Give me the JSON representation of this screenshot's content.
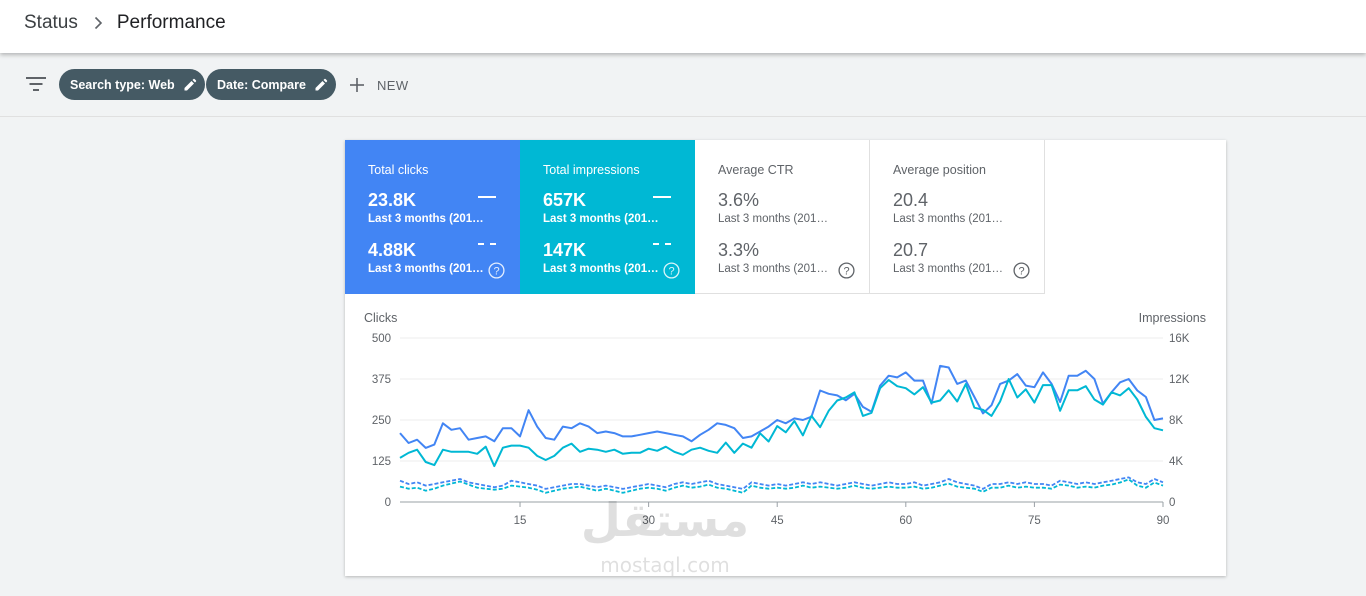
{
  "breadcrumb": {
    "root": "Status",
    "current": "Performance"
  },
  "filters": {
    "chips": [
      {
        "label": "Search type: Web"
      },
      {
        "label": "Date: Compare"
      }
    ],
    "new_label": "NEW"
  },
  "metrics": [
    {
      "label": "Total clicks",
      "value_current": "23.8K",
      "period_current": "Last 3 months (201…",
      "value_previous": "4.88K",
      "period_previous": "Last 3 months (201…",
      "color": "#4285f4",
      "selected": true
    },
    {
      "label": "Total impressions",
      "value_current": "657K",
      "period_current": "Last 3 months (201…",
      "value_previous": "147K",
      "period_previous": "Last 3 months (201…",
      "color": "#00b8d4",
      "selected": true
    },
    {
      "label": "Average CTR",
      "value_current": "3.6%",
      "period_current": "Last 3 months (201…",
      "value_previous": "3.3%",
      "period_previous": "Last 3 months (201…",
      "selected": false
    },
    {
      "label": "Average position",
      "value_current": "20.4",
      "period_current": "Last 3 months (201…",
      "value_previous": "20.7",
      "period_previous": "Last 3 months (201…",
      "selected": false
    }
  ],
  "chart_data": {
    "type": "line",
    "left_axis_title": "Clicks",
    "right_axis_title": "Impressions",
    "y_left_ticks": [
      "500",
      "375",
      "250",
      "125",
      "0"
    ],
    "y_right_ticks": [
      "16K",
      "12K",
      "8K",
      "4K",
      "0"
    ],
    "x_ticks": [
      "15",
      "30",
      "45",
      "60",
      "75",
      "90"
    ],
    "y_left_range": [
      0,
      500
    ],
    "y_right_range": [
      0,
      16000
    ],
    "x_range": [
      1,
      90
    ],
    "grid": true,
    "series": [
      {
        "axis": "left",
        "style": "solid",
        "color": "#4285f4",
        "values": [
          210,
          180,
          190,
          165,
          175,
          240,
          220,
          225,
          190,
          195,
          200,
          185,
          225,
          225,
          200,
          280,
          230,
          195,
          190,
          230,
          225,
          240,
          230,
          210,
          215,
          210,
          200,
          200,
          205,
          210,
          215,
          210,
          205,
          200,
          185,
          205,
          220,
          240,
          235,
          225,
          195,
          200,
          215,
          230,
          250,
          240,
          255,
          250,
          260,
          340,
          330,
          325,
          310,
          330,
          290,
          275,
          355,
          385,
          380,
          395,
          370,
          370,
          300,
          415,
          410,
          360,
          370,
          320,
          270,
          295,
          360,
          370,
          390,
          355,
          350,
          395,
          360,
          305,
          385,
          385,
          400,
          375,
          300,
          335,
          365,
          375,
          340,
          320,
          250,
          255
        ]
      },
      {
        "axis": "right",
        "style": "solid",
        "color": "#00b8d4",
        "values": [
          4300,
          4800,
          5100,
          3900,
          3600,
          5100,
          4900,
          4900,
          4900,
          4700,
          5400,
          3500,
          5300,
          5500,
          5500,
          5300,
          4500,
          4100,
          4500,
          5300,
          5700,
          4900,
          5200,
          5100,
          4900,
          5100,
          4700,
          4800,
          4800,
          5200,
          5000,
          5400,
          4900,
          4600,
          5100,
          5300,
          5000,
          4800,
          5800,
          4800,
          5700,
          5300,
          6700,
          5900,
          7400,
          6800,
          7900,
          6500,
          8400,
          7300,
          8900,
          9900,
          10200,
          10700,
          8400,
          8700,
          11100,
          11900,
          11300,
          11100,
          10500,
          11200,
          9700,
          9900,
          10900,
          9800,
          11500,
          9200,
          9000,
          8400,
          9800,
          12000,
          10200,
          11000,
          9700,
          11400,
          11400,
          8900,
          10900,
          10900,
          11300,
          10000,
          9500,
          10700,
          10400,
          11100,
          10000,
          8300,
          7200,
          7000
        ]
      },
      {
        "axis": "left",
        "style": "dashed",
        "color": "#4285f4",
        "values": [
          65,
          55,
          60,
          50,
          55,
          60,
          65,
          70,
          60,
          55,
          50,
          45,
          50,
          65,
          60,
          55,
          50,
          40,
          45,
          50,
          55,
          55,
          50,
          45,
          50,
          45,
          40,
          45,
          50,
          55,
          50,
          45,
          55,
          60,
          55,
          60,
          65,
          55,
          50,
          45,
          40,
          60,
          55,
          50,
          55,
          50,
          55,
          60,
          55,
          60,
          55,
          50,
          55,
          60,
          55,
          50,
          55,
          60,
          55,
          55,
          60,
          50,
          55,
          60,
          70,
          60,
          55,
          50,
          40,
          55,
          55,
          60,
          55,
          60,
          55,
          55,
          50,
          65,
          60,
          55,
          60,
          55,
          60,
          65,
          70,
          75,
          60,
          55,
          70,
          60
        ]
      },
      {
        "axis": "right",
        "style": "dashed",
        "color": "#00b8d4",
        "values": [
          1500,
          1300,
          1400,
          1100,
          1300,
          1600,
          1800,
          2000,
          1700,
          1400,
          1300,
          1200,
          1300,
          1600,
          1500,
          1400,
          1200,
          900,
          1100,
          1300,
          1400,
          1500,
          1300,
          1100,
          1300,
          1100,
          900,
          1100,
          1300,
          1400,
          1300,
          1100,
          1400,
          1600,
          1400,
          1500,
          1700,
          1400,
          1300,
          1100,
          900,
          1600,
          1400,
          1300,
          1400,
          1300,
          1400,
          1600,
          1400,
          1500,
          1400,
          1300,
          1400,
          1600,
          1400,
          1300,
          1400,
          1500,
          1400,
          1400,
          1500,
          1300,
          1400,
          1600,
          1800,
          1500,
          1400,
          1300,
          1000,
          1400,
          1400,
          1600,
          1400,
          1500,
          1400,
          1400,
          1300,
          1700,
          1600,
          1400,
          1500,
          1400,
          1600,
          1700,
          1900,
          2200,
          1600,
          1400,
          1900,
          1600
        ]
      }
    ]
  },
  "watermark": {
    "arabic": "مستقل",
    "latin": "mostaql.com"
  }
}
